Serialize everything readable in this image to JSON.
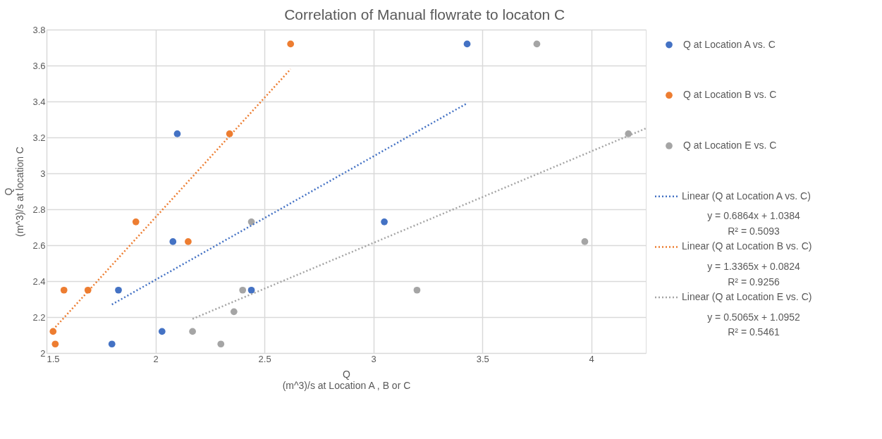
{
  "chart_data": {
    "type": "scatter",
    "title": "Correlation of Manual flowrate to locaton C",
    "xlabel": "Q\n(m^3)/s  at Location A , B or C",
    "ylabel": "Q\n(m^3)/s at location C",
    "xlim": [
      1.5,
      4.25
    ],
    "xticks": [
      1.5,
      2,
      2.5,
      3,
      3.5,
      4
    ],
    "ylim": [
      2,
      3.8
    ],
    "yticks": [
      2,
      2.2,
      2.4,
      2.6,
      2.8,
      3,
      3.2,
      3.4,
      3.6,
      3.8
    ],
    "grid": true,
    "legend": "right",
    "series": [
      {
        "name": "Q at Location A vs. C",
        "color": "#4472c4",
        "marker": "circle",
        "x": [
          1.8,
          1.83,
          2.03,
          2.08,
          2.1,
          2.44,
          3.05,
          3.43
        ],
        "values": [
          2.05,
          2.35,
          2.12,
          2.62,
          3.22,
          2.35,
          2.73,
          3.72
        ]
      },
      {
        "name": "Q at Location B vs. C",
        "color": "#ed7d31",
        "marker": "circle",
        "x": [
          1.53,
          1.54,
          1.58,
          1.69,
          1.91,
          2.15,
          2.34,
          2.62
        ],
        "values": [
          2.12,
          2.05,
          2.35,
          2.35,
          2.73,
          2.62,
          3.22,
          3.72
        ]
      },
      {
        "name": "Q at Location E vs. C",
        "color": "#a5a5a5",
        "marker": "circle",
        "x": [
          2.17,
          2.3,
          2.36,
          2.4,
          2.44,
          3.2,
          3.75,
          3.97,
          4.17
        ],
        "values": [
          2.12,
          2.05,
          2.23,
          2.35,
          2.73,
          2.35,
          3.72,
          2.62,
          3.22
        ]
      },
      {
        "name": "Linear (Q at Location A vs. C)",
        "color": "#4472c4",
        "type": "line",
        "marker": "none",
        "line_style": "dotted",
        "x": [
          1.8,
          3.43
        ],
        "values": [
          2.27,
          3.39
        ]
      },
      {
        "name": "Linear (Q at Location B vs. C)",
        "color": "#ed7d31",
        "type": "line",
        "marker": "none",
        "line_style": "dotted",
        "x": [
          1.53,
          2.62
        ],
        "values": [
          2.13,
          3.58
        ]
      },
      {
        "name": "Linear (Q at Location E vs. C)",
        "color": "#a5a5a5",
        "type": "line",
        "marker": "none",
        "line_style": "dotted",
        "x": [
          2.17,
          4.25
        ],
        "values": [
          2.19,
          3.25
        ]
      }
    ],
    "annotations": [
      "y = 0.6864x + 1.0384",
      "R² = 0.5093",
      "y = 1.3365x + 0.0824",
      "R² = 0.9256",
      "y = 0.5065x + 1.0952",
      "R² = 0.5461"
    ]
  }
}
